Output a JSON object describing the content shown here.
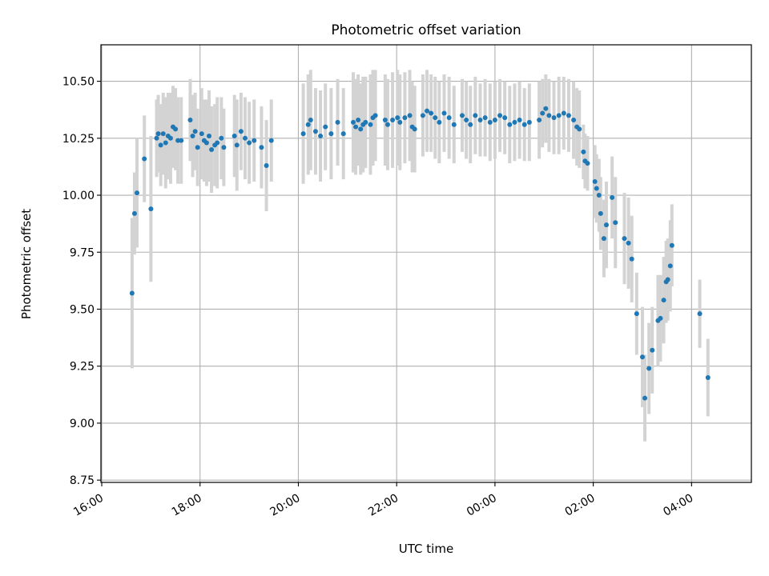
{
  "chart_data": {
    "type": "scatter",
    "title": "Photometric offset variation",
    "xlabel": "UTC time",
    "ylabel": "Photometric offset",
    "x_unit": "time (HH:MM, UTC)",
    "xlim": [
      "15:59",
      "05:13"
    ],
    "ylim": [
      8.74,
      10.66
    ],
    "grid": true,
    "marker_color": "#1f77b4",
    "errorbar_color": "#d3d3d3",
    "x_ticks": [
      "16:00",
      "18:00",
      "20:00",
      "22:00",
      "00:00",
      "02:00",
      "04:00"
    ],
    "y_ticks": [
      "8.75",
      "9.00",
      "9.25",
      "9.50",
      "9.75",
      "10.00",
      "10.25",
      "10.50"
    ],
    "points": [
      [
        "16:37",
        9.57,
        0.33
      ],
      [
        "16:40",
        9.92,
        0.18
      ],
      [
        "16:43",
        10.01,
        0.24
      ],
      [
        "16:52",
        10.16,
        0.19
      ],
      [
        "17:00",
        9.94,
        0.32
      ],
      [
        "17:07",
        10.25,
        0.17
      ],
      [
        "17:09",
        10.27,
        0.17
      ],
      [
        "17:12",
        10.22,
        0.18
      ],
      [
        "17:15",
        10.27,
        0.18
      ],
      [
        "17:18",
        10.23,
        0.2
      ],
      [
        "17:21",
        10.26,
        0.19
      ],
      [
        "17:24",
        10.25,
        0.2
      ],
      [
        "17:27",
        10.3,
        0.18
      ],
      [
        "17:30",
        10.29,
        0.18
      ],
      [
        "17:33",
        10.24,
        0.19
      ],
      [
        "17:37",
        10.24,
        0.19
      ],
      [
        "17:48",
        10.33,
        0.18
      ],
      [
        "17:51",
        10.26,
        0.18
      ],
      [
        "17:54",
        10.28,
        0.17
      ],
      [
        "17:57",
        10.21,
        0.17
      ],
      [
        "18:02",
        10.27,
        0.2
      ],
      [
        "18:05",
        10.24,
        0.18
      ],
      [
        "18:08",
        10.23,
        0.19
      ],
      [
        "18:11",
        10.26,
        0.2
      ],
      [
        "18:14",
        10.2,
        0.19
      ],
      [
        "18:18",
        10.22,
        0.18
      ],
      [
        "18:21",
        10.23,
        0.2
      ],
      [
        "18:26",
        10.25,
        0.18
      ],
      [
        "18:29",
        10.21,
        0.17
      ],
      [
        "18:42",
        10.26,
        0.18
      ],
      [
        "18:45",
        10.22,
        0.2
      ],
      [
        "18:50",
        10.28,
        0.17
      ],
      [
        "18:55",
        10.25,
        0.18
      ],
      [
        "19:00",
        10.23,
        0.18
      ],
      [
        "19:06",
        10.24,
        0.18
      ],
      [
        "19:15",
        10.21,
        0.18
      ],
      [
        "19:21",
        10.13,
        0.2
      ],
      [
        "19:27",
        10.24,
        0.18
      ],
      [
        "20:06",
        10.27,
        0.22
      ],
      [
        "20:12",
        10.31,
        0.22
      ],
      [
        "20:15",
        10.33,
        0.22
      ],
      [
        "20:21",
        10.28,
        0.19
      ],
      [
        "20:27",
        10.26,
        0.2
      ],
      [
        "20:33",
        10.3,
        0.19
      ],
      [
        "20:40",
        10.27,
        0.2
      ],
      [
        "20:48",
        10.32,
        0.19
      ],
      [
        "20:55",
        10.27,
        0.2
      ],
      [
        "21:07",
        10.32,
        0.22
      ],
      [
        "21:10",
        10.3,
        0.21
      ],
      [
        "21:13",
        10.33,
        0.2
      ],
      [
        "21:16",
        10.29,
        0.2
      ],
      [
        "21:19",
        10.31,
        0.21
      ],
      [
        "21:22",
        10.32,
        0.2
      ],
      [
        "21:28",
        10.31,
        0.22
      ],
      [
        "21:31",
        10.34,
        0.21
      ],
      [
        "21:34",
        10.35,
        0.2
      ],
      [
        "21:46",
        10.33,
        0.2
      ],
      [
        "21:49",
        10.31,
        0.2
      ],
      [
        "21:55",
        10.33,
        0.21
      ],
      [
        "22:01",
        10.34,
        0.21
      ],
      [
        "22:04",
        10.32,
        0.21
      ],
      [
        "22:10",
        10.34,
        0.2
      ],
      [
        "22:16",
        10.35,
        0.2
      ],
      [
        "22:19",
        10.3,
        0.2
      ],
      [
        "22:22",
        10.29,
        0.19
      ],
      [
        "22:32",
        10.35,
        0.18
      ],
      [
        "22:37",
        10.37,
        0.18
      ],
      [
        "22:42",
        10.36,
        0.17
      ],
      [
        "22:47",
        10.34,
        0.18
      ],
      [
        "22:52",
        10.32,
        0.18
      ],
      [
        "22:58",
        10.36,
        0.17
      ],
      [
        "23:04",
        10.34,
        0.18
      ],
      [
        "23:10",
        10.31,
        0.17
      ],
      [
        "23:20",
        10.35,
        0.16
      ],
      [
        "23:25",
        10.33,
        0.17
      ],
      [
        "23:30",
        10.31,
        0.17
      ],
      [
        "23:36",
        10.35,
        0.17
      ],
      [
        "23:42",
        10.33,
        0.16
      ],
      [
        "23:48",
        10.34,
        0.17
      ],
      [
        "23:54",
        10.32,
        0.17
      ],
      [
        "00:00",
        10.33,
        0.17
      ],
      [
        "00:06",
        10.35,
        0.16
      ],
      [
        "00:12",
        10.34,
        0.16
      ],
      [
        "00:18",
        10.31,
        0.17
      ],
      [
        "00:24",
        10.32,
        0.17
      ],
      [
        "00:30",
        10.33,
        0.17
      ],
      [
        "00:36",
        10.31,
        0.16
      ],
      [
        "00:42",
        10.32,
        0.17
      ],
      [
        "00:54",
        10.33,
        0.17
      ],
      [
        "00:58",
        10.36,
        0.15
      ],
      [
        "01:02",
        10.38,
        0.15
      ],
      [
        "01:06",
        10.35,
        0.16
      ],
      [
        "01:12",
        10.34,
        0.16
      ],
      [
        "01:18",
        10.35,
        0.17
      ],
      [
        "01:24",
        10.36,
        0.16
      ],
      [
        "01:30",
        10.35,
        0.16
      ],
      [
        "01:36",
        10.33,
        0.17
      ],
      [
        "01:40",
        10.3,
        0.17
      ],
      [
        "01:43",
        10.29,
        0.17
      ],
      [
        "01:48",
        10.19,
        0.12
      ],
      [
        "01:50",
        10.15,
        0.12
      ],
      [
        "01:53",
        10.14,
        0.12
      ],
      [
        "02:02",
        10.06,
        0.16
      ],
      [
        "02:04",
        10.03,
        0.15
      ],
      [
        "02:07",
        10.0,
        0.16
      ],
      [
        "02:09",
        9.92,
        0.16
      ],
      [
        "02:13",
        9.81,
        0.17
      ],
      [
        "02:16",
        9.87,
        0.19
      ],
      [
        "02:23",
        9.99,
        0.18
      ],
      [
        "02:27",
        9.88,
        0.2
      ],
      [
        "02:38",
        9.81,
        0.2
      ],
      [
        "02:43",
        9.79,
        0.2
      ],
      [
        "02:47",
        9.72,
        0.19
      ],
      [
        "02:53",
        9.48,
        0.18
      ],
      [
        "03:00",
        9.29,
        0.22
      ],
      [
        "03:03",
        9.11,
        0.19
      ],
      [
        "03:08",
        9.24,
        0.2
      ],
      [
        "03:12",
        9.32,
        0.19
      ],
      [
        "03:19",
        9.45,
        0.2
      ],
      [
        "03:22",
        9.46,
        0.19
      ],
      [
        "03:26",
        9.54,
        0.19
      ],
      [
        "03:29",
        9.62,
        0.18
      ],
      [
        "03:31",
        9.63,
        0.18
      ],
      [
        "03:34",
        9.69,
        0.2
      ],
      [
        "03:36",
        9.78,
        0.18
      ],
      [
        "04:10",
        9.48,
        0.15
      ],
      [
        "04:20",
        9.2,
        0.17
      ]
    ]
  }
}
